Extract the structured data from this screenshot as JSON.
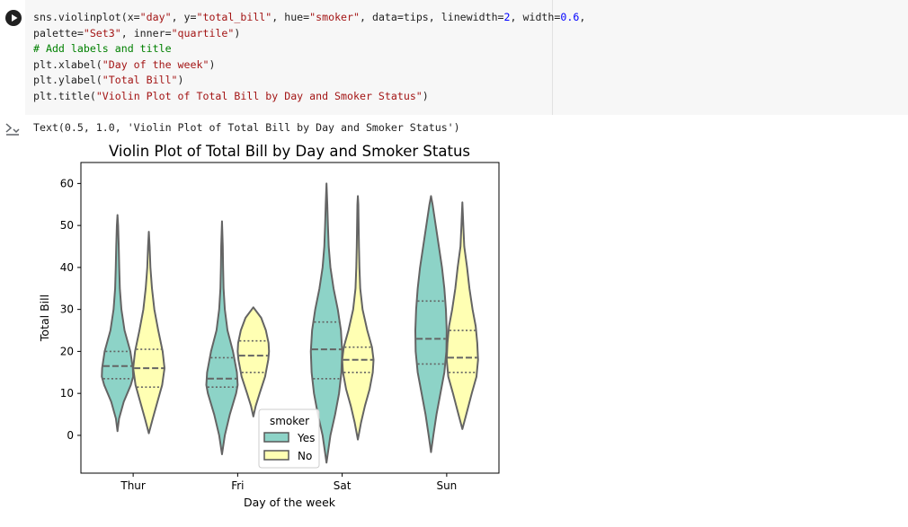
{
  "cell": {
    "code_lines": [
      [
        {
          "t": "sns.violinplot(x="
        },
        {
          "t": "\"day\"",
          "c": "str"
        },
        {
          "t": ", y="
        },
        {
          "t": "\"total_bill\"",
          "c": "str"
        },
        {
          "t": ", hue="
        },
        {
          "t": "\"smoker\"",
          "c": "str"
        },
        {
          "t": ", data=tips, linewidth="
        },
        {
          "t": "2",
          "c": "kw"
        },
        {
          "t": ", width="
        },
        {
          "t": "0.6",
          "c": "kw"
        },
        {
          "t": ","
        }
      ],
      [
        {
          "t": "palette="
        },
        {
          "t": "\"Set3\"",
          "c": "str"
        },
        {
          "t": ", inner="
        },
        {
          "t": "\"quartile\"",
          "c": "str"
        },
        {
          "t": ")"
        }
      ],
      [
        {
          "t": "# Add labels and title",
          "c": "cmt"
        }
      ],
      [
        {
          "t": "plt.xlabel("
        },
        {
          "t": "\"Day of the week\"",
          "c": "str"
        },
        {
          "t": ")"
        }
      ],
      [
        {
          "t": "plt.ylabel("
        },
        {
          "t": "\"Total Bill\"",
          "c": "str"
        },
        {
          "t": ")"
        }
      ],
      [
        {
          "t": "plt.title("
        },
        {
          "t": "\"Violin Plot of Total Bill by Day and Smoker Status\"",
          "c": "str"
        },
        {
          "t": ")"
        }
      ]
    ],
    "output_text": "Text(0.5, 1.0, 'Violin Plot of Total Bill by Day and Smoker Status')",
    "run_icon": "play-icon",
    "output_icon": "output-toggle-icon"
  },
  "chart_data": {
    "type": "violin",
    "title": "Violin Plot of Total Bill by Day and Smoker Status",
    "xlabel": "Day of the week",
    "ylabel": "Total Bill",
    "categories": [
      "Thur",
      "Fri",
      "Sat",
      "Sun"
    ],
    "ylim": [
      -9,
      65
    ],
    "yticks": [
      0,
      10,
      20,
      30,
      40,
      50,
      60
    ],
    "legend": {
      "title": "smoker",
      "placement": "lower-center"
    },
    "series": [
      {
        "name": "Yes",
        "color": "#8dd3c7",
        "violins": [
          {
            "min": 1,
            "max": 52.5,
            "q1": 13.5,
            "median": 16.5,
            "q3": 20,
            "profile": [
              [
                1,
                0
              ],
              [
                4,
                0.1
              ],
              [
                8,
                0.4
              ],
              [
                12,
                0.85
              ],
              [
                14,
                1
              ],
              [
                16,
                0.98
              ],
              [
                20,
                0.82
              ],
              [
                25,
                0.45
              ],
              [
                30,
                0.25
              ],
              [
                35,
                0.15
              ],
              [
                40,
                0.11
              ],
              [
                45,
                0.08
              ],
              [
                50,
                0.04
              ],
              [
                52.5,
                0
              ]
            ]
          },
          {
            "min": -4.5,
            "max": 51,
            "q1": 11.5,
            "median": 13.5,
            "q3": 18.5,
            "profile": [
              [
                -4.5,
                0
              ],
              [
                0,
                0.18
              ],
              [
                5,
                0.5
              ],
              [
                10,
                0.9
              ],
              [
                12,
                1
              ],
              [
                15,
                0.95
              ],
              [
                20,
                0.7
              ],
              [
                25,
                0.35
              ],
              [
                30,
                0.18
              ],
              [
                35,
                0.1
              ],
              [
                40,
                0.07
              ],
              [
                45,
                0.05
              ],
              [
                51,
                0
              ]
            ]
          },
          {
            "min": -6.5,
            "max": 60,
            "q1": 13.5,
            "median": 20.5,
            "q3": 27,
            "profile": [
              [
                -6.5,
                0
              ],
              [
                0,
                0.25
              ],
              [
                5,
                0.55
              ],
              [
                10,
                0.8
              ],
              [
                15,
                0.95
              ],
              [
                20,
                1
              ],
              [
                25,
                0.92
              ],
              [
                30,
                0.72
              ],
              [
                35,
                0.45
              ],
              [
                40,
                0.25
              ],
              [
                45,
                0.14
              ],
              [
                50,
                0.09
              ],
              [
                55,
                0.05
              ],
              [
                60,
                0
              ]
            ]
          },
          {
            "min": -4,
            "max": 57,
            "q1": 17,
            "median": 23,
            "q3": 32,
            "profile": [
              [
                -4,
                0
              ],
              [
                0,
                0.15
              ],
              [
                5,
                0.35
              ],
              [
                10,
                0.6
              ],
              [
                15,
                0.85
              ],
              [
                20,
                0.98
              ],
              [
                25,
                1
              ],
              [
                30,
                0.95
              ],
              [
                35,
                0.85
              ],
              [
                40,
                0.7
              ],
              [
                45,
                0.5
              ],
              [
                50,
                0.3
              ],
              [
                55,
                0.1
              ],
              [
                57,
                0
              ]
            ]
          }
        ]
      },
      {
        "name": "No",
        "color": "#ffffb3",
        "violins": [
          {
            "min": 0.5,
            "max": 48.5,
            "q1": 11.5,
            "median": 16,
            "q3": 20.5,
            "profile": [
              [
                0.5,
                0
              ],
              [
                4,
                0.25
              ],
              [
                8,
                0.55
              ],
              [
                12,
                0.85
              ],
              [
                16,
                1
              ],
              [
                20,
                0.88
              ],
              [
                25,
                0.6
              ],
              [
                30,
                0.35
              ],
              [
                35,
                0.2
              ],
              [
                40,
                0.1
              ],
              [
                45,
                0.05
              ],
              [
                48.5,
                0
              ]
            ]
          },
          {
            "min": 4.5,
            "max": 30.5,
            "q1": 15,
            "median": 19,
            "q3": 22.5,
            "profile": [
              [
                4.5,
                0
              ],
              [
                7,
                0.15
              ],
              [
                10,
                0.4
              ],
              [
                14,
                0.75
              ],
              [
                18,
                0.95
              ],
              [
                20,
                1
              ],
              [
                22,
                0.97
              ],
              [
                25,
                0.8
              ],
              [
                28,
                0.5
              ],
              [
                30.5,
                0
              ]
            ]
          },
          {
            "min": -1,
            "max": 57,
            "q1": 15,
            "median": 18,
            "q3": 21,
            "profile": [
              [
                -1,
                0
              ],
              [
                3,
                0.2
              ],
              [
                7,
                0.45
              ],
              [
                11,
                0.75
              ],
              [
                15,
                0.95
              ],
              [
                18,
                1
              ],
              [
                21,
                0.9
              ],
              [
                25,
                0.6
              ],
              [
                30,
                0.3
              ],
              [
                35,
                0.15
              ],
              [
                40,
                0.1
              ],
              [
                45,
                0.07
              ],
              [
                50,
                0.05
              ],
              [
                55,
                0.03
              ],
              [
                57,
                0
              ]
            ]
          },
          {
            "min": 1.5,
            "max": 55.5,
            "q1": 15,
            "median": 18.5,
            "q3": 25,
            "profile": [
              [
                1.5,
                0
              ],
              [
                5,
                0.25
              ],
              [
                10,
                0.6
              ],
              [
                14,
                0.9
              ],
              [
                18,
                1
              ],
              [
                22,
                0.95
              ],
              [
                26,
                0.85
              ],
              [
                30,
                0.65
              ],
              [
                35,
                0.45
              ],
              [
                40,
                0.3
              ],
              [
                45,
                0.12
              ],
              [
                50,
                0.06
              ],
              [
                55.5,
                0
              ]
            ]
          }
        ]
      }
    ]
  }
}
